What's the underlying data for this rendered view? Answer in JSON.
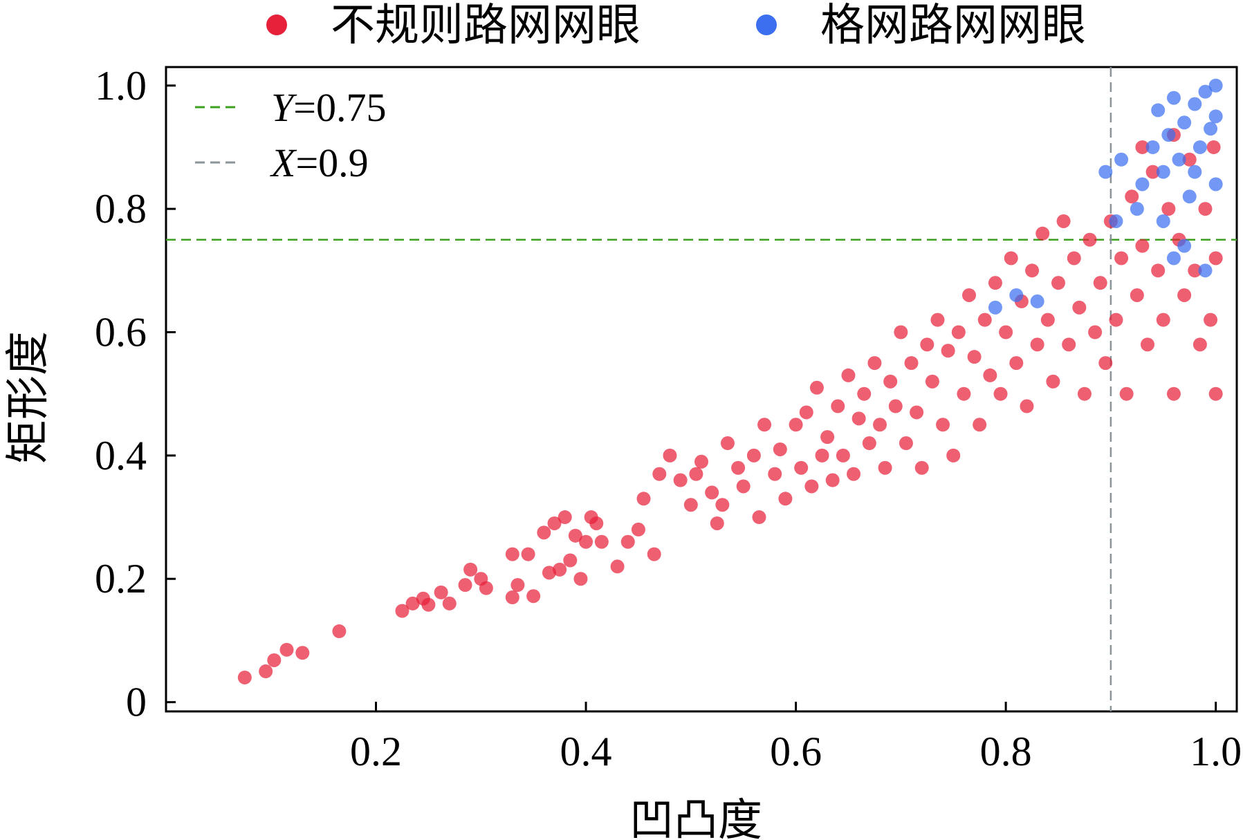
{
  "chart_data": {
    "type": "scatter",
    "title": "",
    "xlabel": "凹凸度",
    "ylabel": "矩形度",
    "xlim": [
      0,
      1.02
    ],
    "ylim": [
      -0.015,
      1.03
    ],
    "xticks": [
      {
        "value": 0.2,
        "label": "0.2"
      },
      {
        "value": 0.4,
        "label": "0.4"
      },
      {
        "value": 0.6,
        "label": "0.6"
      },
      {
        "value": 0.8,
        "label": "0.8"
      },
      {
        "value": 1.0,
        "label": "1.0"
      }
    ],
    "yticks": [
      {
        "value": 0,
        "label": "0"
      },
      {
        "value": 0.2,
        "label": "0.2"
      },
      {
        "value": 0.4,
        "label": "0.4"
      },
      {
        "value": 0.6,
        "label": "0.6"
      },
      {
        "value": 0.8,
        "label": "0.8"
      },
      {
        "value": 1.0,
        "label": "1.0"
      }
    ],
    "grid": false,
    "legend_placement": "top-outside",
    "reference_lines": [
      {
        "axis": "y",
        "value": 0.75,
        "var": "Y",
        "text": "=0.75",
        "color": "#3f9f1f"
      },
      {
        "axis": "x",
        "value": 0.9,
        "var": "X",
        "text": "=0.9",
        "color": "#8a9499"
      }
    ],
    "series": [
      {
        "name": "不规则路网网眼",
        "color": "#e8213a",
        "points": [
          [
            0.075,
            0.04
          ],
          [
            0.095,
            0.05
          ],
          [
            0.103,
            0.068
          ],
          [
            0.115,
            0.085
          ],
          [
            0.13,
            0.08
          ],
          [
            0.165,
            0.115
          ],
          [
            0.225,
            0.148
          ],
          [
            0.235,
            0.16
          ],
          [
            0.245,
            0.168
          ],
          [
            0.25,
            0.158
          ],
          [
            0.262,
            0.178
          ],
          [
            0.27,
            0.16
          ],
          [
            0.285,
            0.19
          ],
          [
            0.29,
            0.215
          ],
          [
            0.3,
            0.2
          ],
          [
            0.305,
            0.185
          ],
          [
            0.33,
            0.24
          ],
          [
            0.33,
            0.17
          ],
          [
            0.335,
            0.19
          ],
          [
            0.345,
            0.24
          ],
          [
            0.35,
            0.172
          ],
          [
            0.36,
            0.275
          ],
          [
            0.365,
            0.21
          ],
          [
            0.37,
            0.29
          ],
          [
            0.375,
            0.215
          ],
          [
            0.38,
            0.3
          ],
          [
            0.385,
            0.23
          ],
          [
            0.39,
            0.27
          ],
          [
            0.395,
            0.2
          ],
          [
            0.4,
            0.26
          ],
          [
            0.405,
            0.3
          ],
          [
            0.41,
            0.29
          ],
          [
            0.415,
            0.26
          ],
          [
            0.43,
            0.22
          ],
          [
            0.44,
            0.26
          ],
          [
            0.45,
            0.28
          ],
          [
            0.455,
            0.33
          ],
          [
            0.465,
            0.24
          ],
          [
            0.47,
            0.37
          ],
          [
            0.48,
            0.4
          ],
          [
            0.49,
            0.36
          ],
          [
            0.5,
            0.32
          ],
          [
            0.505,
            0.37
          ],
          [
            0.51,
            0.39
          ],
          [
            0.52,
            0.34
          ],
          [
            0.525,
            0.29
          ],
          [
            0.53,
            0.32
          ],
          [
            0.535,
            0.42
          ],
          [
            0.545,
            0.38
          ],
          [
            0.55,
            0.35
          ],
          [
            0.56,
            0.4
          ],
          [
            0.565,
            0.3
          ],
          [
            0.57,
            0.45
          ],
          [
            0.58,
            0.37
          ],
          [
            0.585,
            0.41
          ],
          [
            0.59,
            0.33
          ],
          [
            0.6,
            0.45
          ],
          [
            0.605,
            0.38
          ],
          [
            0.61,
            0.47
          ],
          [
            0.615,
            0.35
          ],
          [
            0.62,
            0.51
          ],
          [
            0.625,
            0.4
          ],
          [
            0.63,
            0.43
          ],
          [
            0.635,
            0.36
          ],
          [
            0.64,
            0.48
          ],
          [
            0.645,
            0.4
          ],
          [
            0.65,
            0.53
          ],
          [
            0.655,
            0.37
          ],
          [
            0.66,
            0.46
          ],
          [
            0.665,
            0.5
          ],
          [
            0.67,
            0.42
          ],
          [
            0.675,
            0.55
          ],
          [
            0.68,
            0.45
          ],
          [
            0.685,
            0.38
          ],
          [
            0.69,
            0.52
          ],
          [
            0.695,
            0.48
          ],
          [
            0.7,
            0.6
          ],
          [
            0.705,
            0.42
          ],
          [
            0.71,
            0.55
          ],
          [
            0.715,
            0.47
          ],
          [
            0.72,
            0.38
          ],
          [
            0.725,
            0.58
          ],
          [
            0.73,
            0.52
          ],
          [
            0.735,
            0.62
          ],
          [
            0.74,
            0.45
          ],
          [
            0.745,
            0.57
          ],
          [
            0.75,
            0.4
          ],
          [
            0.755,
            0.6
          ],
          [
            0.76,
            0.5
          ],
          [
            0.765,
            0.66
          ],
          [
            0.77,
            0.56
          ],
          [
            0.775,
            0.45
          ],
          [
            0.78,
            0.62
          ],
          [
            0.785,
            0.53
          ],
          [
            0.79,
            0.68
          ],
          [
            0.795,
            0.5
          ],
          [
            0.8,
            0.6
          ],
          [
            0.805,
            0.72
          ],
          [
            0.81,
            0.55
          ],
          [
            0.815,
            0.65
          ],
          [
            0.82,
            0.48
          ],
          [
            0.825,
            0.7
          ],
          [
            0.83,
            0.58
          ],
          [
            0.835,
            0.76
          ],
          [
            0.84,
            0.62
          ],
          [
            0.845,
            0.52
          ],
          [
            0.85,
            0.68
          ],
          [
            0.855,
            0.78
          ],
          [
            0.86,
            0.58
          ],
          [
            0.865,
            0.72
          ],
          [
            0.87,
            0.64
          ],
          [
            0.875,
            0.5
          ],
          [
            0.88,
            0.75
          ],
          [
            0.885,
            0.6
          ],
          [
            0.89,
            0.68
          ],
          [
            0.895,
            0.55
          ],
          [
            0.9,
            0.78
          ],
          [
            0.905,
            0.62
          ],
          [
            0.91,
            0.72
          ],
          [
            0.915,
            0.5
          ],
          [
            0.92,
            0.82
          ],
          [
            0.925,
            0.66
          ],
          [
            0.93,
            0.74
          ],
          [
            0.935,
            0.58
          ],
          [
            0.94,
            0.86
          ],
          [
            0.945,
            0.7
          ],
          [
            0.95,
            0.62
          ],
          [
            0.955,
            0.8
          ],
          [
            0.96,
            0.5
          ],
          [
            0.965,
            0.75
          ],
          [
            0.97,
            0.66
          ],
          [
            0.975,
            0.88
          ],
          [
            0.98,
            0.7
          ],
          [
            0.985,
            0.58
          ],
          [
            0.99,
            0.8
          ],
          [
            0.995,
            0.62
          ],
          [
            1.0,
            0.72
          ],
          [
            1.0,
            0.5
          ],
          [
            0.998,
            0.9
          ],
          [
            0.96,
            0.92
          ],
          [
            0.93,
            0.9
          ]
        ]
      },
      {
        "name": "格网路网网眼",
        "color": "#3b6ff0",
        "points": [
          [
            0.79,
            0.64
          ],
          [
            0.81,
            0.66
          ],
          [
            0.83,
            0.65
          ],
          [
            0.895,
            0.86
          ],
          [
            0.905,
            0.78
          ],
          [
            0.91,
            0.88
          ],
          [
            0.925,
            0.8
          ],
          [
            0.93,
            0.84
          ],
          [
            0.94,
            0.9
          ],
          [
            0.945,
            0.96
          ],
          [
            0.95,
            0.86
          ],
          [
            0.955,
            0.92
          ],
          [
            0.96,
            0.98
          ],
          [
            0.965,
            0.88
          ],
          [
            0.97,
            0.94
          ],
          [
            0.975,
            0.82
          ],
          [
            0.98,
            0.97
          ],
          [
            0.985,
            0.9
          ],
          [
            0.99,
            0.99
          ],
          [
            0.995,
            0.93
          ],
          [
            1.0,
            1.0
          ],
          [
            1.0,
            0.95
          ],
          [
            0.97,
            0.74
          ],
          [
            0.99,
            0.7
          ],
          [
            0.96,
            0.72
          ],
          [
            0.98,
            0.86
          ],
          [
            0.95,
            0.78
          ],
          [
            1.0,
            0.84
          ]
        ]
      }
    ]
  }
}
